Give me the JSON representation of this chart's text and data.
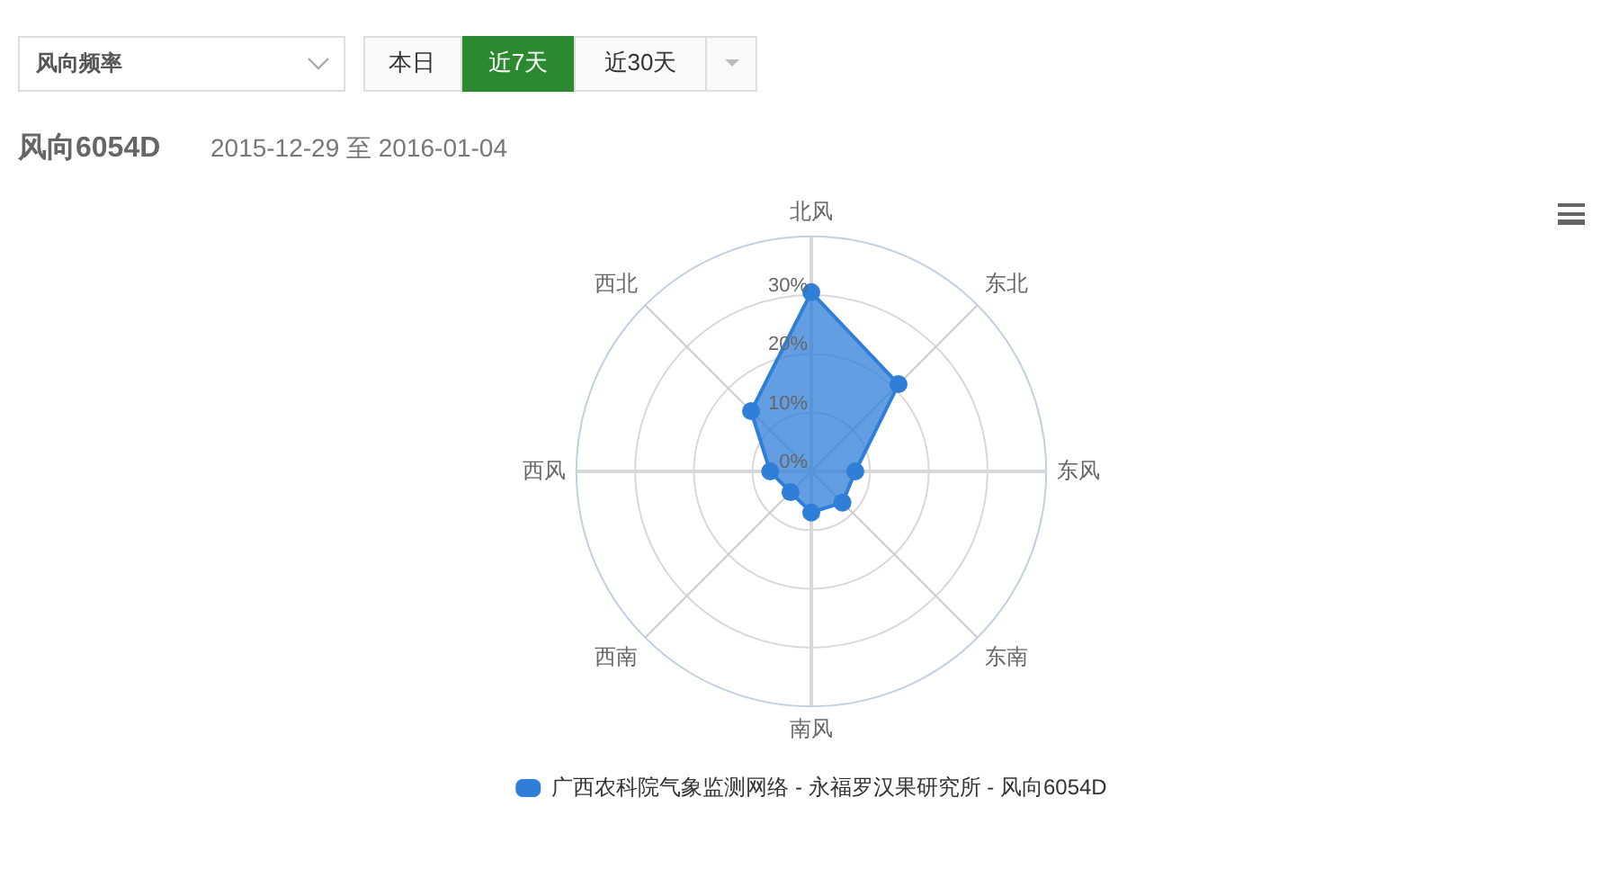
{
  "chart_data": {
    "type": "radar",
    "title": "风向6054D",
    "subtitle": "2015-12-29 至 2016-01-04",
    "annotations": [
      "风向频率",
      "本日",
      "近7天",
      "近30天"
    ],
    "categories": [
      "北风",
      "东北",
      "东风",
      "东南",
      "南风",
      "西南",
      "西风",
      "西北"
    ],
    "series": [
      {
        "name": "广西农科院气象监测网络 - 永福罗汉果研究所 - 风向6054D",
        "color": "#2f7ed8",
        "values": [
          30.5,
          21,
          7.5,
          7.5,
          7,
          5,
          7,
          14.5
        ]
      }
    ],
    "ylim": [
      0,
      40
    ],
    "yticks": [
      {
        "value": 0,
        "label": "0%"
      },
      {
        "value": 10,
        "label": "10%"
      },
      {
        "value": 20,
        "label": "20%"
      },
      {
        "value": 30,
        "label": "30%"
      }
    ],
    "grid": true,
    "legend": "bottom",
    "marker": "circle",
    "line_style": "solid"
  }
}
